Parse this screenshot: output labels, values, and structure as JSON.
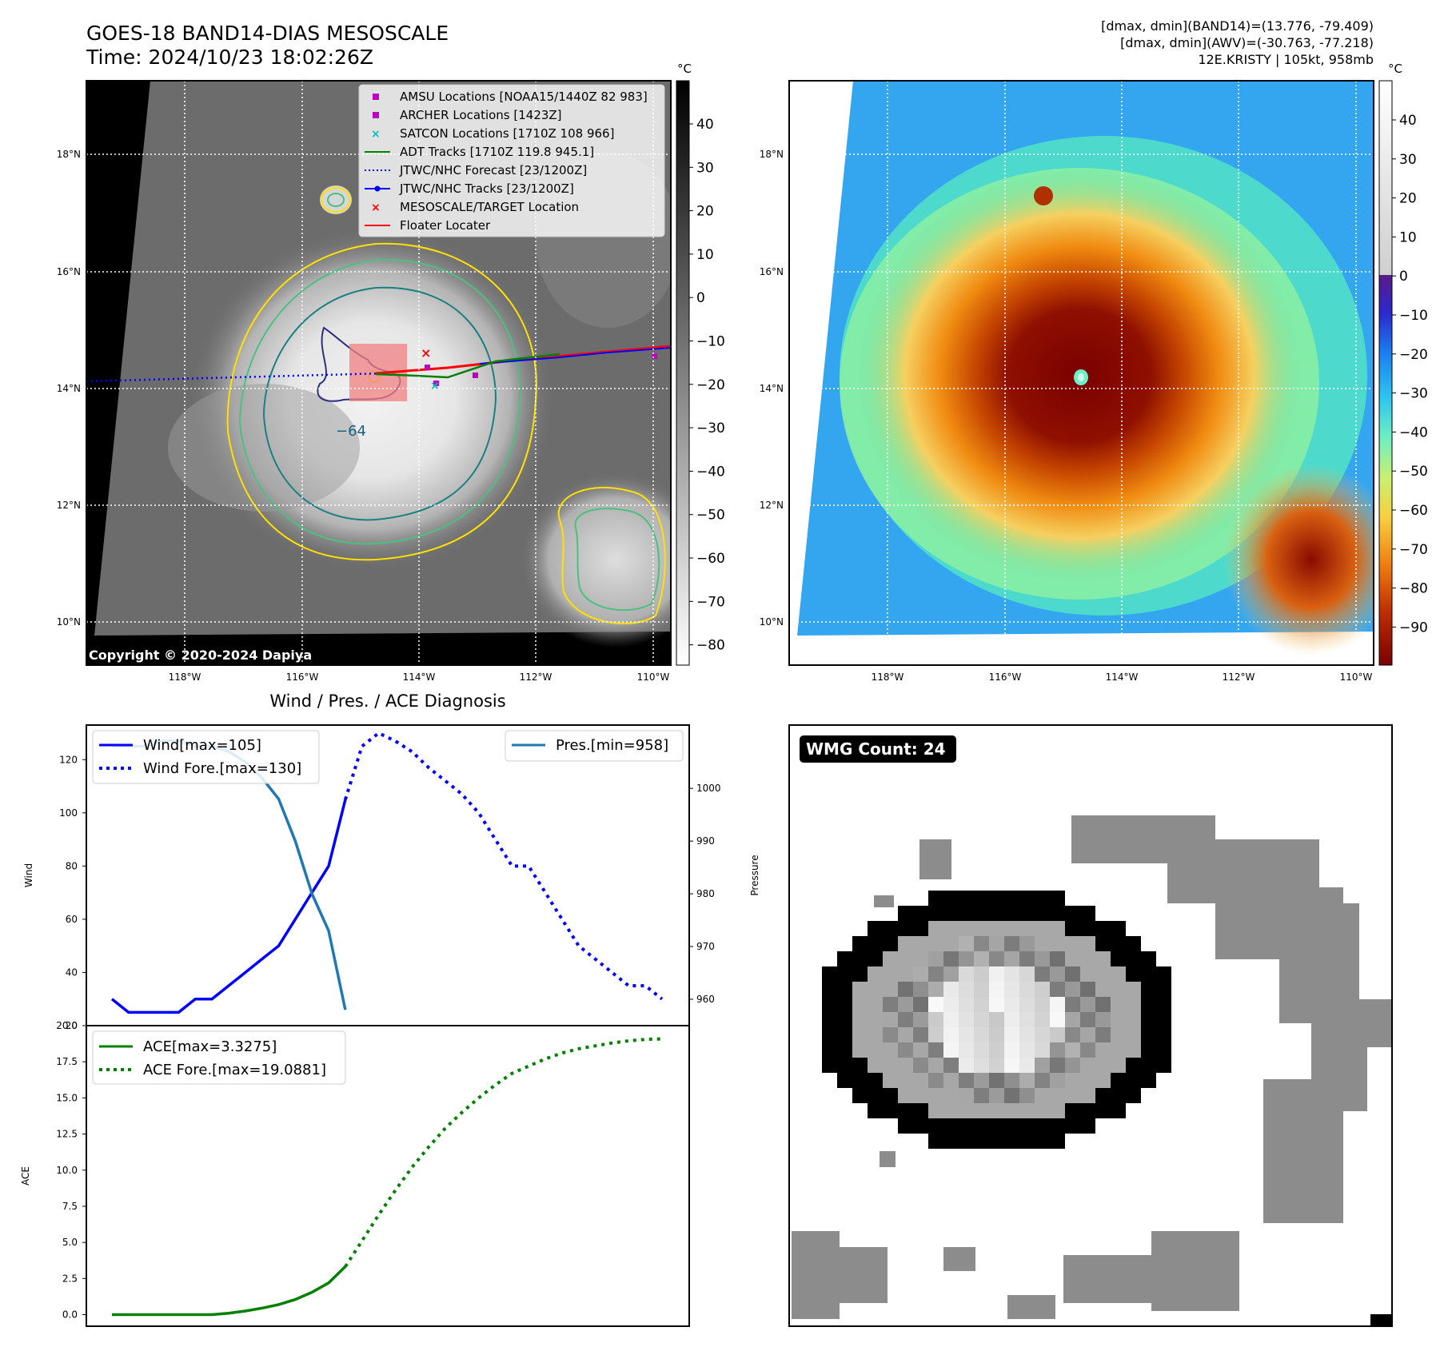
{
  "header": {
    "title_line1": "GOES-18 BAND14-DIAS MESOSCALE",
    "title_line2": "Time: 2024/10/23 18:02:26Z",
    "info_line1": "[dmax, dmin](BAND14)=(13.776, -79.409)",
    "info_line2": "[dmax, dmin](AWV)=(-30.763, -77.218)",
    "info_line3": "12E.KRISTY | 105kt, 958mb"
  },
  "map_ir": {
    "copyright": "Copyright © 2020-2024 Dapiya",
    "colorbar_unit": "°C",
    "colorbar_ticks": [
      "40",
      "30",
      "20",
      "10",
      "0",
      "−10",
      "−20",
      "−30",
      "−40",
      "−50",
      "−60",
      "−70",
      "−80"
    ],
    "contour_label": "−64",
    "lat_labels": [
      "18°N",
      "16°N",
      "14°N",
      "12°N",
      "10°N"
    ],
    "lon_labels": [
      "118°W",
      "116°W",
      "114°W",
      "112°W",
      "110°W"
    ],
    "legend": [
      {
        "label": "AMSU Locations [NOAA15/1440Z 82 983]",
        "marker": "square",
        "color": "#c000c0"
      },
      {
        "label": "ARCHER Locations [1423Z]",
        "marker": "square",
        "color": "#c000c0"
      },
      {
        "label": "SATCON Locations [1710Z 108 966]",
        "marker": "x",
        "color": "#00c0c0"
      },
      {
        "label": "ADT Tracks [1710Z 119.8 945.1]",
        "marker": "line",
        "color": "#008000"
      },
      {
        "label": "JTWC/NHC Forecast [23/1200Z]",
        "marker": "dotted",
        "color": "#0000ff"
      },
      {
        "label": "JTWC/NHC Tracks [23/1200Z]",
        "marker": "line-dot",
        "color": "#0000ff"
      },
      {
        "label": "MESOSCALE/TARGET Location",
        "marker": "x",
        "color": "#ff0000"
      },
      {
        "label": "Floater Locater",
        "marker": "line",
        "color": "#ff0000"
      }
    ]
  },
  "map_awv": {
    "colorbar_unit": "°C",
    "colorbar_ticks": [
      "40",
      "30",
      "20",
      "10",
      "0",
      "−10",
      "−20",
      "−30",
      "−40",
      "−50",
      "−60",
      "−70",
      "−80",
      "−90"
    ],
    "lat_labels": [
      "18°N",
      "16°N",
      "14°N",
      "12°N",
      "10°N"
    ],
    "lon_labels": [
      "118°W",
      "116°W",
      "114°W",
      "112°W",
      "110°W"
    ]
  },
  "wmg": {
    "badge": "WMG Count: 24"
  },
  "chart_data": [
    {
      "type": "line",
      "title": "Wind / Pres. / ACE Diagnosis",
      "ylabel": "Wind",
      "ylabel_right": "Pressure",
      "ylim": [
        20,
        133
      ],
      "ylim_right": [
        955,
        1012
      ],
      "yticks": [
        "20",
        "40",
        "60",
        "80",
        "100",
        "120"
      ],
      "yticks_right": [
        "960",
        "970",
        "980",
        "990",
        "1000"
      ],
      "x": [
        0,
        1,
        2,
        3,
        4,
        5,
        6,
        7,
        8,
        9,
        10,
        11,
        12,
        13,
        14,
        15,
        16,
        17,
        18,
        19,
        20,
        21,
        22,
        23,
        24,
        25,
        26,
        27,
        28,
        29,
        30,
        31,
        32,
        33
      ],
      "series": [
        {
          "name": "Wind[max=105]",
          "axis": "left",
          "style": "solid",
          "color": "#0000ff",
          "x": [
            0,
            1,
            2,
            3,
            4,
            5,
            6,
            7,
            8,
            9,
            10,
            11,
            12,
            13,
            14
          ],
          "values": [
            30,
            25,
            25,
            25,
            25,
            30,
            30,
            35,
            40,
            45,
            50,
            60,
            70,
            80,
            105
          ]
        },
        {
          "name": "Wind Fore.[max=130]",
          "axis": "left",
          "style": "dotted",
          "color": "#0000ff",
          "x": [
            14,
            15,
            16,
            17,
            18,
            19,
            20,
            21,
            22,
            23,
            24,
            25,
            26,
            27,
            28,
            29,
            30,
            31,
            32,
            33
          ],
          "values": [
            105,
            125,
            130,
            127,
            123,
            117,
            112,
            107,
            100,
            90,
            80,
            80,
            70,
            60,
            50,
            45,
            40,
            35,
            35,
            30
          ]
        },
        {
          "name": "Pres.[min=958]",
          "axis": "right",
          "style": "solid",
          "color": "#1f77b4",
          "x": [
            0,
            1,
            2,
            3,
            4,
            5,
            6,
            7,
            8,
            9,
            10,
            11,
            12,
            13,
            14
          ],
          "values": [
            1008,
            1008,
            1008,
            1009,
            1009,
            1008,
            1008,
            1007,
            1005,
            1002,
            998,
            990,
            980,
            973,
            958
          ]
        }
      ]
    },
    {
      "type": "line",
      "ylabel": "ACE",
      "ylim": [
        -0.8,
        20
      ],
      "yticks": [
        "0.0",
        "2.5",
        "5.0",
        "7.5",
        "10.0",
        "12.5",
        "15.0",
        "17.5",
        "20.0"
      ],
      "series": [
        {
          "name": "ACE[max=3.3275]",
          "style": "solid",
          "color": "#008000",
          "x": [
            0,
            1,
            2,
            3,
            4,
            5,
            6,
            7,
            8,
            9,
            10,
            11,
            12,
            13,
            14
          ],
          "values": [
            0,
            0,
            0,
            0,
            0,
            0,
            0,
            0.1,
            0.25,
            0.45,
            0.7,
            1.05,
            1.55,
            2.2,
            3.3275
          ]
        },
        {
          "name": "ACE Fore.[max=19.0881]",
          "style": "dotted",
          "color": "#008000",
          "x": [
            14,
            15,
            16,
            17,
            18,
            19,
            20,
            21,
            22,
            23,
            24,
            25,
            26,
            27,
            28,
            29,
            30,
            31,
            32,
            33
          ],
          "values": [
            3.3275,
            5.1,
            6.9,
            8.6,
            10.2,
            11.6,
            12.9,
            14.0,
            15.0,
            15.9,
            16.7,
            17.2,
            17.7,
            18.1,
            18.4,
            18.6,
            18.8,
            18.95,
            19.05,
            19.0881
          ]
        }
      ]
    }
  ]
}
